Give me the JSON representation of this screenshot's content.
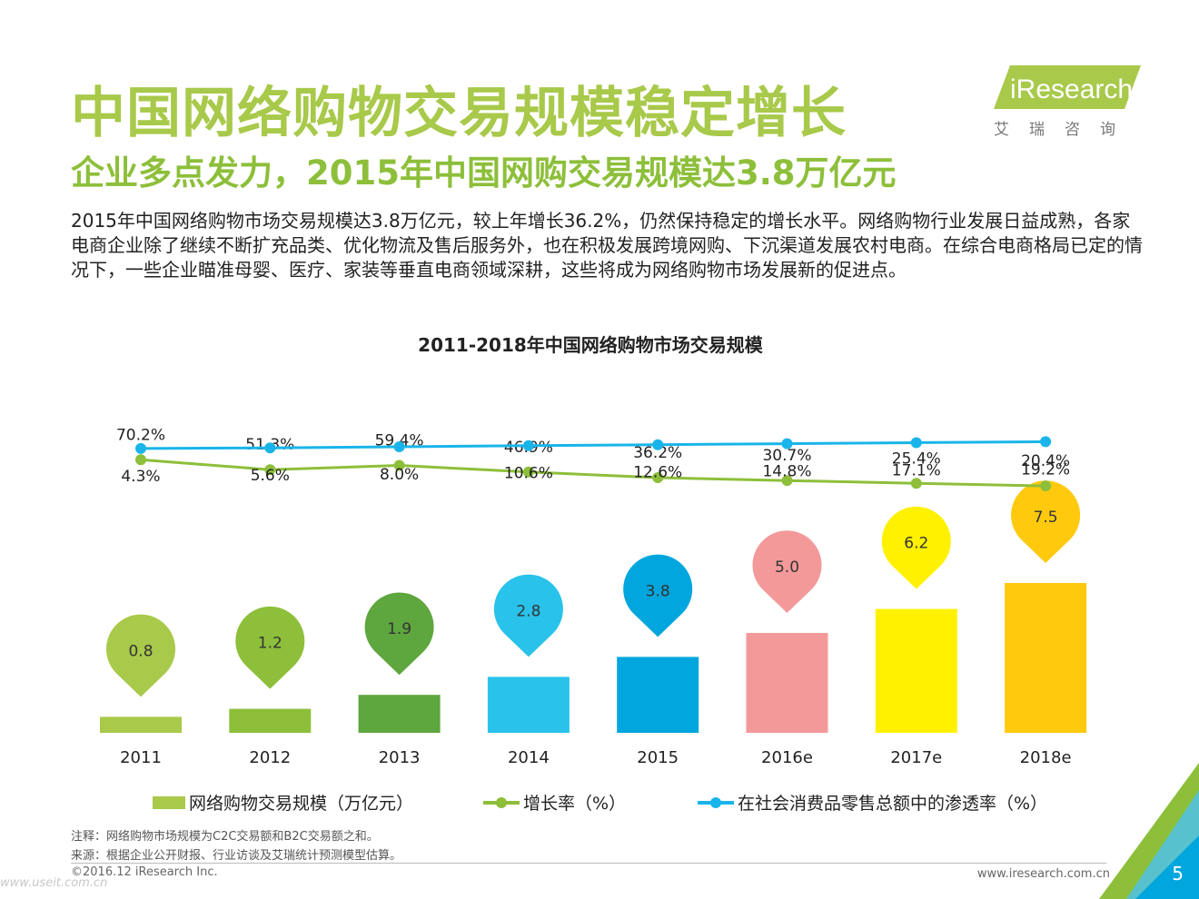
{
  "header": {
    "title": "中国网络购物交易规模稳定增长",
    "subtitle": "企业多点发力，2015年中国网购交易规模达3.8万亿元",
    "body": "2015年中国网络购物市场交易规模达3.8万亿元，较上年增长36.2%，仍然保持稳定的增长水平。网络购物行业发展日益成熟，各家电商企业除了继续不断扩充品类、优化物流及售后服务外，也在积极发展跨境网购、下沉渠道发展农村电商。在综合电商格局已定的情况下，一些企业瞄准母婴、医疗、家装等垂直电商领域深耕，这些将成为网络购物市场发展新的促进点。"
  },
  "logo": {
    "word": "iResearch",
    "sub": "艾瑞咨询",
    "color": "#a8c94a"
  },
  "chart_data": {
    "type": "bar",
    "title": "2011-2018年中国网络购物市场交易规模",
    "categories": [
      "2011",
      "2012",
      "2013",
      "2014",
      "2015",
      "2016e",
      "2017e",
      "2018e"
    ],
    "series": [
      {
        "name": "网络购物交易规模（万亿元）",
        "type": "bar",
        "values": [
          0.8,
          1.2,
          1.9,
          2.8,
          3.8,
          5.0,
          6.2,
          7.5
        ],
        "labels": [
          "0.8",
          "1.2",
          "1.9",
          "2.8",
          "3.8",
          "5.0",
          "6.2",
          "7.5"
        ],
        "colors": [
          "#a8c94a",
          "#8dbf3a",
          "#5ea63e",
          "#29c2ea",
          "#00a6dd",
          "#f4999a",
          "#fff100",
          "#ffc90e"
        ]
      },
      {
        "name": "增长率（%）",
        "type": "line",
        "values": [
          70.2,
          51.3,
          59.4,
          46.9,
          36.2,
          30.7,
          25.4,
          20.4
        ],
        "labels": [
          "70.2%",
          "51.3%",
          "59.4%",
          "46.9%",
          "36.2%",
          "30.7%",
          "25.4%",
          "20.4%"
        ],
        "color": "#8dbf3a"
      },
      {
        "name": "在社会消费品零售总额中的渗透率（%）",
        "type": "line",
        "values": [
          4.3,
          5.6,
          8.0,
          10.6,
          12.6,
          14.8,
          17.1,
          19.2
        ],
        "labels": [
          "4.3%",
          "5.6%",
          "8.0%",
          "10.6%",
          "12.6%",
          "14.8%",
          "17.1%",
          "19.2%"
        ],
        "color": "#19b5ea"
      }
    ],
    "bar_ylim": [
      0,
      9
    ],
    "legend_position": "bottom"
  },
  "legend": {
    "bar_label": "网络购物交易规模（万亿元）",
    "growth_label": "增长率（%）",
    "penetration_label": "在社会消费品零售总额中的渗透率（%）"
  },
  "notes": {
    "note": "注释：网络购物市场规模为C2C交易额和B2C交易额之和。",
    "source": "来源：根据企业公开财报、行业访谈及艾瑞统计预测模型估算。"
  },
  "footer": {
    "copyright": "©2016.12 iResearch Inc.",
    "site": "www.iresearch.com.cn",
    "page": "5",
    "watermark": "www.useit.com.cn"
  }
}
